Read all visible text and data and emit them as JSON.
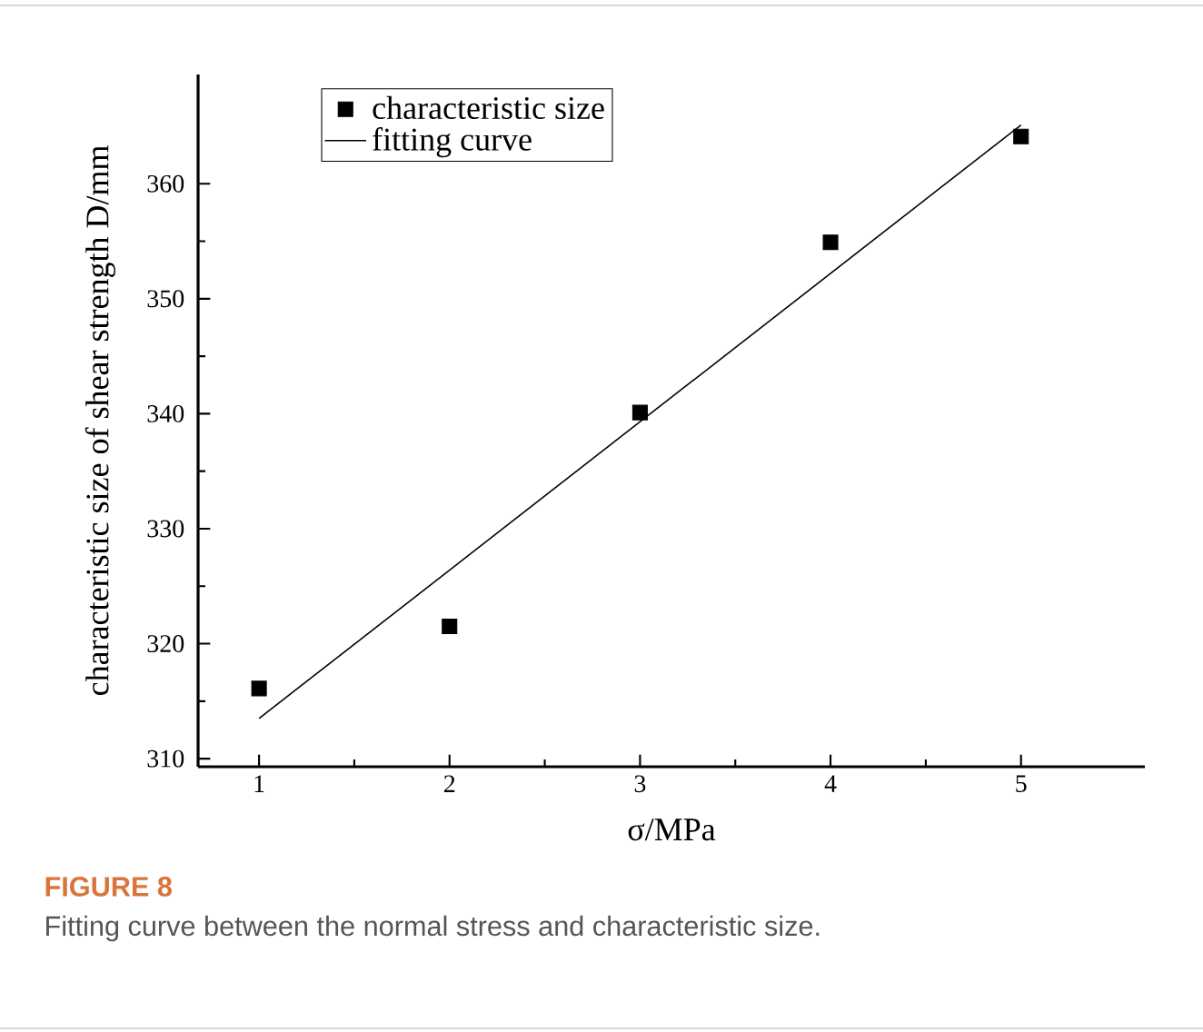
{
  "chart_data": {
    "type": "scatter",
    "xlabel": "σ/MPa",
    "ylabel": "characteristic size of shear strength D/mm",
    "x": [
      1,
      2,
      3,
      4,
      5
    ],
    "series": [
      {
        "name": "characteristic size",
        "type": "scatter",
        "color": "#000000",
        "marker": "square",
        "values": [
          316.1,
          321.5,
          340.1,
          354.9,
          364.1
        ]
      },
      {
        "name": "fitting curve",
        "type": "line",
        "color": "#000000",
        "line_style": "solid",
        "x": [
          1,
          5
        ],
        "values": [
          313.5,
          365.1
        ]
      }
    ],
    "xlim": [
      0.68,
      5.65
    ],
    "ylim": [
      309.3,
      369.5
    ],
    "xticks": [
      1,
      2,
      3,
      4,
      5
    ],
    "yticks": [
      310,
      320,
      330,
      340,
      350,
      360
    ],
    "grid": false,
    "legend": "top left",
    "annotations": [
      "FIGURE 8",
      "Fitting curve between the normal stress and characteristic size."
    ]
  }
}
